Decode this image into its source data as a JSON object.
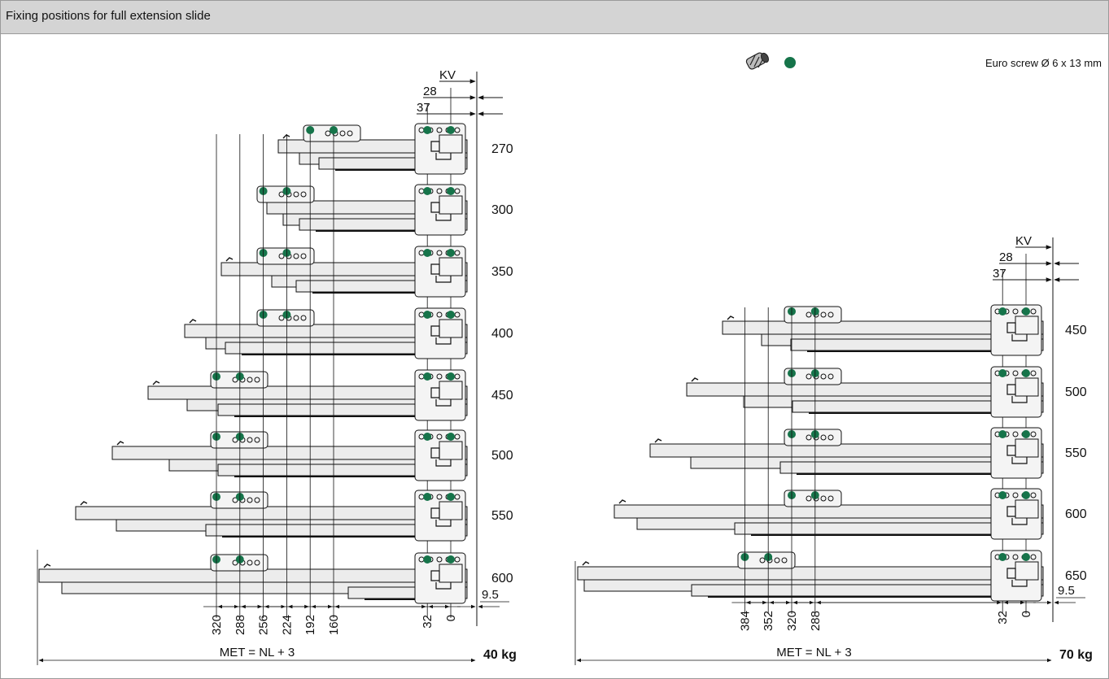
{
  "header": {
    "title": "Fixing positions for full extension slide"
  },
  "legend": {
    "text": "Euro screw Ø 6 x 13 mm",
    "screw_icon": "screw-icon",
    "dot_color": "#16744a"
  },
  "colors": {
    "dot": "#16744a",
    "rail": "#ececec",
    "stroke": "#111111"
  },
  "left_diagram": {
    "weight": "40 kg",
    "formula": "MET = NL + 3",
    "dim_kv": "KV",
    "dim_28": "28",
    "dim_37": "37",
    "dim_9_5": "9.5",
    "lengths": [
      "270",
      "300",
      "350",
      "400",
      "450",
      "500",
      "550",
      "600"
    ],
    "bottom_dims": [
      "320",
      "288",
      "256",
      "224",
      "192",
      "160",
      "32",
      "0"
    ]
  },
  "right_diagram": {
    "weight": "70 kg",
    "formula": "MET = NL + 3",
    "dim_kv": "KV",
    "dim_28": "28",
    "dim_37": "37",
    "dim_9_5": "9.5",
    "lengths": [
      "450",
      "500",
      "550",
      "600",
      "650"
    ],
    "bottom_dims": [
      "384",
      "352",
      "320",
      "288",
      "32",
      "0"
    ]
  }
}
